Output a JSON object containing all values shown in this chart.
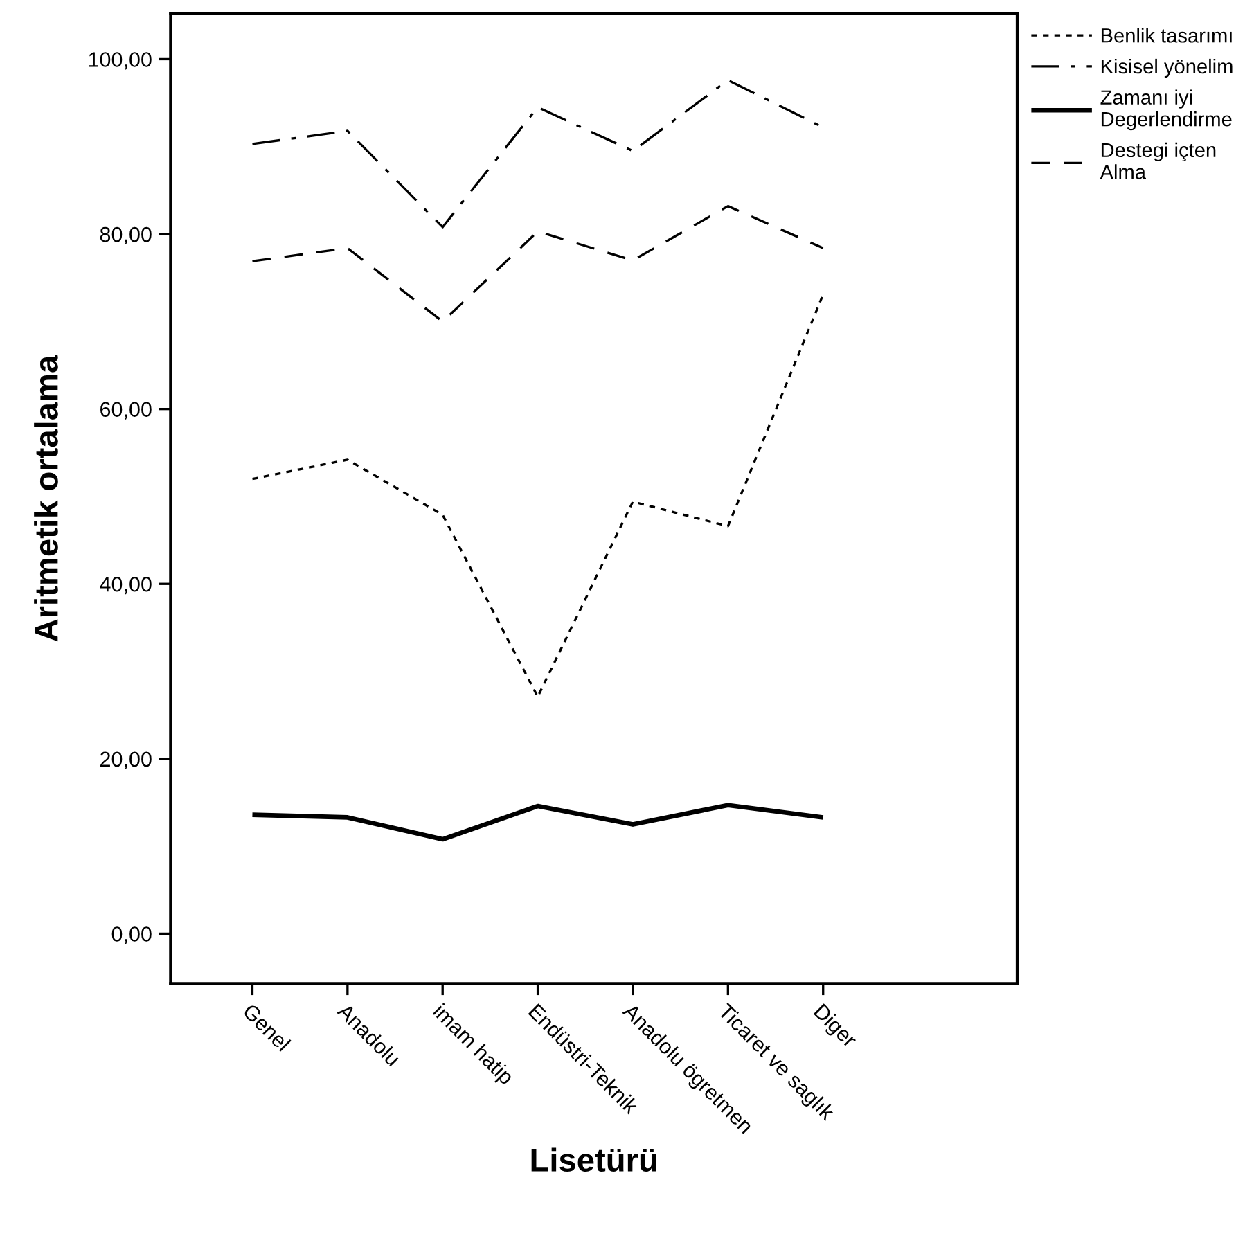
{
  "chart_data": {
    "type": "line",
    "xlabel": "Lisetürü",
    "ylabel": "Aritmetik ortalama",
    "categories": [
      "Genel",
      "Anadolu",
      "imam hatip",
      "Endüstri-Teknik",
      "Anadolu ögretmen",
      "Ticaret ve saglık",
      "Diger"
    ],
    "series": [
      {
        "name": "Benlik tasarımı",
        "color": "#000000",
        "line_style": "dotted",
        "values": [
          52.0,
          54.2,
          47.9,
          27.1,
          49.4,
          46.6,
          73.1
        ]
      },
      {
        "name": "Kisisel yönelim",
        "color": "#000000",
        "line_style": "dashdot",
        "values": [
          90.3,
          91.8,
          80.8,
          94.5,
          89.5,
          97.6,
          92.2
        ]
      },
      {
        "name": "Zamanı iyi\nDegerlendirme",
        "color": "#000000",
        "line_style": "solid",
        "values": [
          13.6,
          13.3,
          10.8,
          14.6,
          12.5,
          14.7,
          13.3
        ]
      },
      {
        "name": "Destegi içten\nAlma",
        "color": "#000000",
        "line_style": "dashed",
        "values": [
          76.9,
          78.4,
          70.0,
          80.3,
          77.0,
          83.2,
          78.4
        ]
      }
    ],
    "ylim": [
      -5.7,
      105.2
    ],
    "yticks": [
      {
        "value": 0,
        "label": "0,00"
      },
      {
        "value": 20,
        "label": "20,00"
      },
      {
        "value": 40,
        "label": "40,00"
      },
      {
        "value": 60,
        "label": "60,00"
      },
      {
        "value": 80,
        "label": "80,00"
      },
      {
        "value": 100,
        "label": "100,00"
      }
    ],
    "legend": "top right",
    "grid": false,
    "marker": "none"
  }
}
